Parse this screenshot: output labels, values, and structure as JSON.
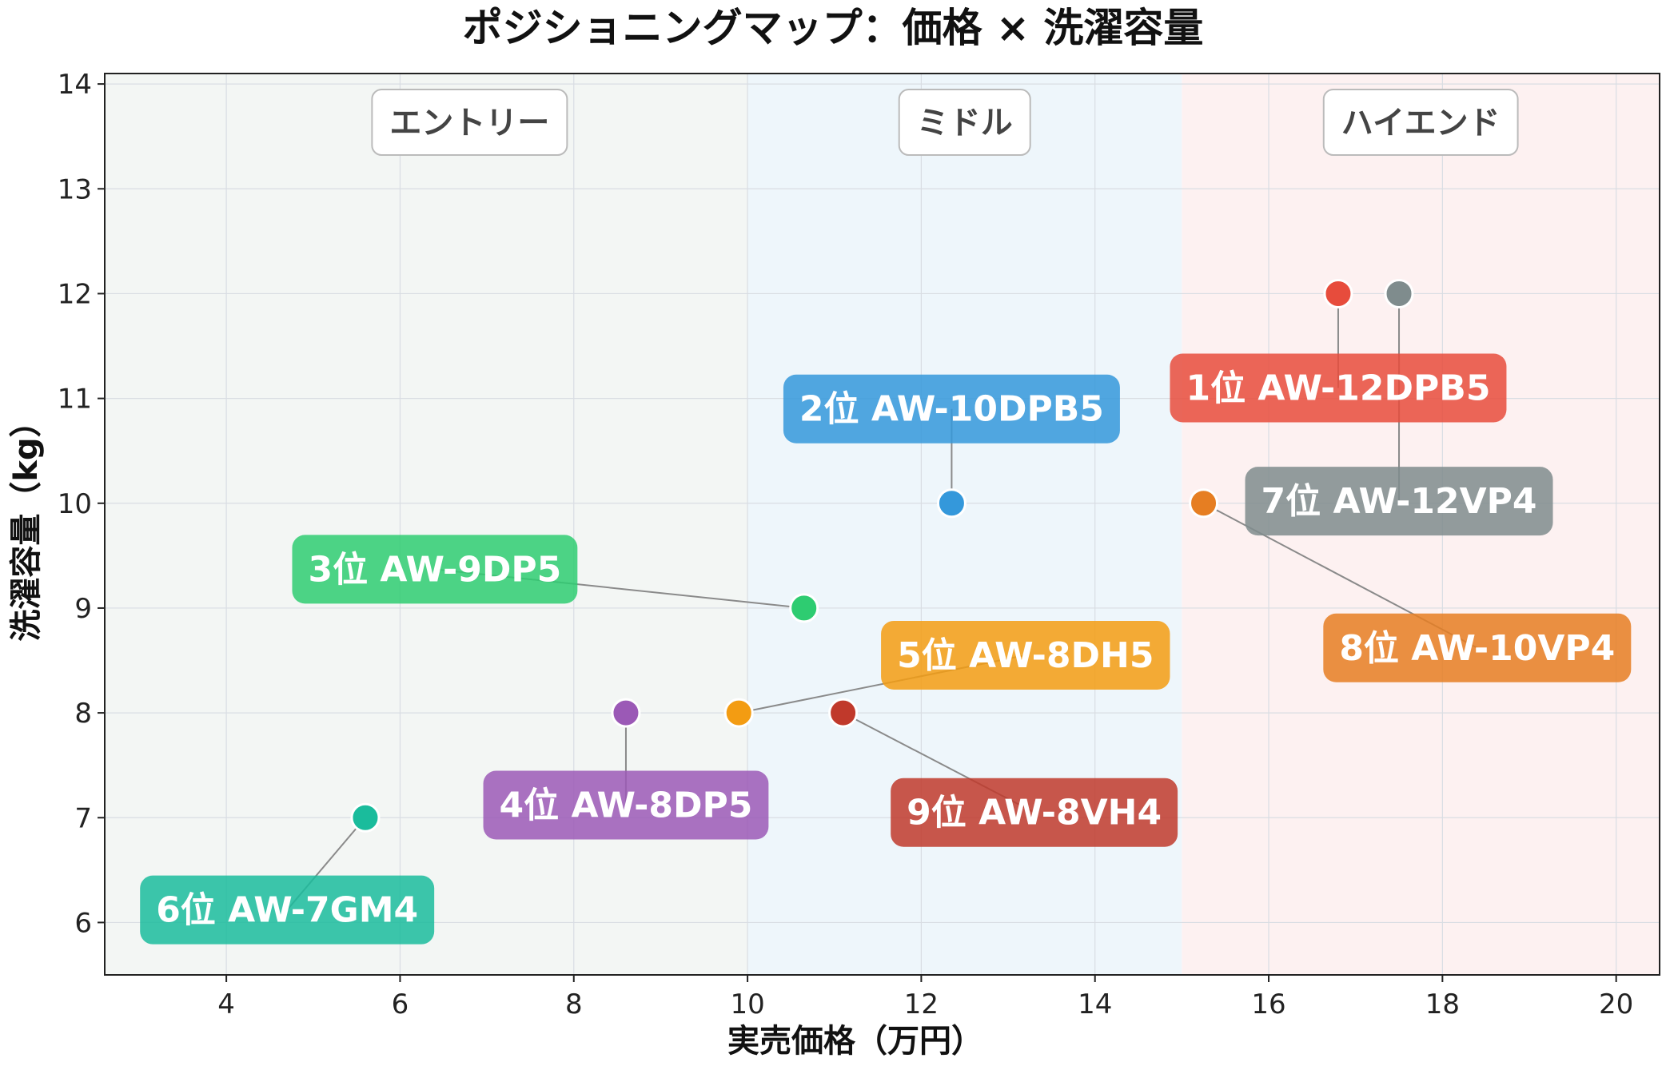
{
  "chart_data": {
    "type": "scatter",
    "title": "ポジショニングマップ：価格 × 洗濯容量",
    "xlabel": "実売価格（万円）",
    "ylabel": "洗濯容量（kg）",
    "xlim": [
      2.6,
      20.5
    ],
    "ylim": [
      5.5,
      14.1
    ],
    "xticks": [
      4,
      6,
      8,
      10,
      12,
      14,
      16,
      18,
      20
    ],
    "yticks": [
      6,
      7,
      8,
      9,
      10,
      11,
      12,
      13,
      14
    ],
    "grid": true,
    "zones": [
      {
        "label": "エントリー",
        "x_from": 2.6,
        "x_to": 10,
        "color": "#f3f6f4"
      },
      {
        "label": "ミドル",
        "x_from": 10,
        "x_to": 15,
        "color": "#eef6fb"
      },
      {
        "label": "ハイエンド",
        "x_from": 15,
        "x_to": 20.5,
        "color": "#fdf1f1"
      }
    ],
    "points": [
      {
        "label": "1位 AW-12DPB5",
        "x": 16.8,
        "y": 12,
        "color": "#e74c3c",
        "label_x": 16.8,
        "label_y": 11.1
      },
      {
        "label": "2位 AW-10DPB5",
        "x": 12.35,
        "y": 10,
        "color": "#3498db",
        "label_x": 12.35,
        "label_y": 10.9
      },
      {
        "label": "3位 AW-9DP5",
        "x": 10.65,
        "y": 9,
        "color": "#2ecc71",
        "label_x": 6.4,
        "label_y": 9.37
      },
      {
        "label": "4位 AW-8DP5",
        "x": 8.6,
        "y": 8,
        "color": "#9b59b6",
        "label_x": 8.6,
        "label_y": 7.12
      },
      {
        "label": "5位 AW-8DH5",
        "x": 9.9,
        "y": 8,
        "color": "#f39c12",
        "label_x": 13.2,
        "label_y": 8.55
      },
      {
        "label": "6位 AW-7GM4",
        "x": 5.6,
        "y": 7,
        "color": "#1abc9c",
        "label_x": 4.7,
        "label_y": 6.12
      },
      {
        "label": "7位 AW-12VP4",
        "x": 17.5,
        "y": 12,
        "color": "#7f8c8d",
        "label_x": 17.5,
        "label_y": 10.02
      },
      {
        "label": "8位 AW-10VP4",
        "x": 15.25,
        "y": 10,
        "color": "#e67e22",
        "label_x": 18.4,
        "label_y": 8.62
      },
      {
        "label": "9位 AW-8VH4",
        "x": 11.1,
        "y": 8,
        "color": "#c0392b",
        "label_x": 13.3,
        "label_y": 7.05
      }
    ]
  }
}
